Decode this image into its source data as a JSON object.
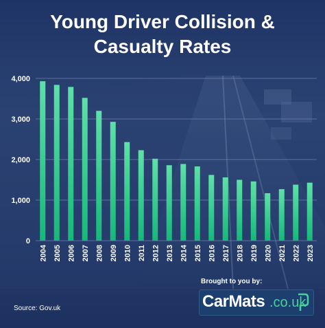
{
  "title_line1": "Young Driver Collision &",
  "title_line2": "Casualty Rates",
  "source": "Source: Gov.uk",
  "sponsor_text": "Brought to you by:",
  "logo": {
    "brand": "CarMats",
    "domain": ".co.uk",
    "icon": "carmats-flag-icon"
  },
  "colors": {
    "background": "#1f3466",
    "bar_top": "#5fe0a8",
    "bar_bottom": "#16b87a",
    "gridline": "#6f83ad",
    "accent": "#46d29a"
  },
  "chart_data": {
    "type": "bar",
    "title": "Young Driver Collision & Casualty Rates",
    "xlabel": "",
    "ylabel": "",
    "categories": [
      "2004",
      "2005",
      "2006",
      "2007",
      "2008",
      "2009",
      "2010",
      "2011",
      "2012",
      "2013",
      "2014",
      "2015",
      "2016",
      "2017",
      "2018",
      "2019",
      "2020",
      "2021",
      "2022",
      "2023"
    ],
    "values": [
      3930,
      3840,
      3790,
      3520,
      3200,
      2930,
      2430,
      2230,
      2020,
      1860,
      1890,
      1830,
      1620,
      1560,
      1500,
      1460,
      1170,
      1270,
      1380,
      1430
    ],
    "ylim": [
      0,
      4000
    ],
    "yticks": [
      0,
      1000,
      2000,
      3000,
      4000
    ],
    "ytick_labels": [
      "0",
      "1,000",
      "2,000",
      "3,000",
      "4,000"
    ],
    "grid": true
  }
}
